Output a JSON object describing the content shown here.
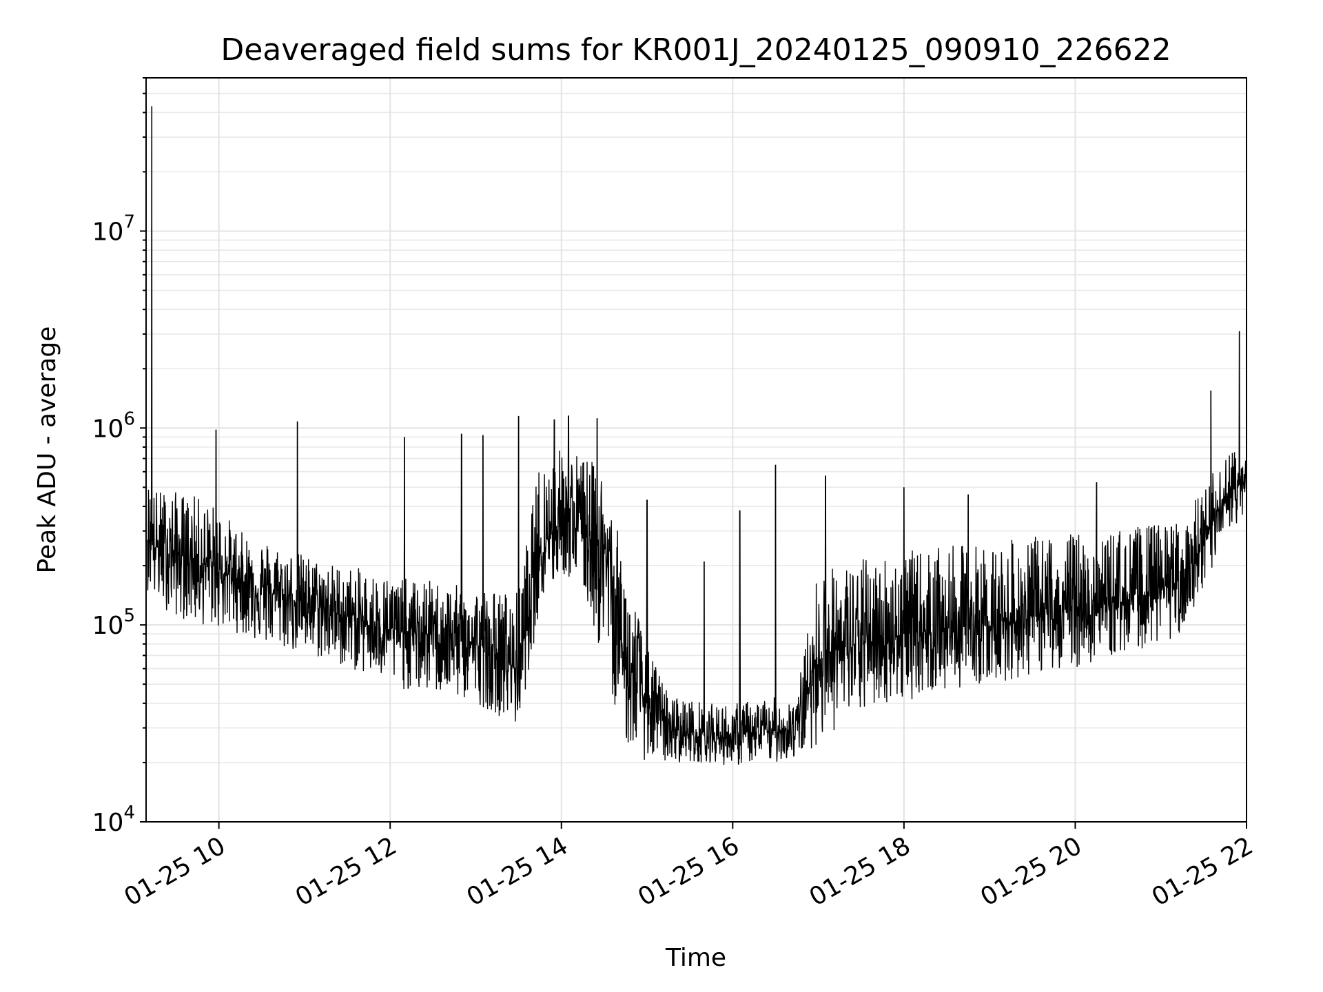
{
  "chart_data": {
    "type": "line",
    "title": "Deaveraged field sums for KR001J_20240125_090910_226622",
    "xlabel": "Time",
    "ylabel": "Peak ADU - average",
    "yscale": "log",
    "ylim": [
      10000,
      60000000
    ],
    "xlim": [
      "2024-01-25 09:09",
      "2024-01-25 22:00"
    ],
    "grid": true,
    "x_ticks": [
      {
        "value": "2024-01-25 10:00",
        "label": "01-25 10"
      },
      {
        "value": "2024-01-25 12:00",
        "label": "01-25 12"
      },
      {
        "value": "2024-01-25 14:00",
        "label": "01-25 14"
      },
      {
        "value": "2024-01-25 16:00",
        "label": "01-25 16"
      },
      {
        "value": "2024-01-25 18:00",
        "label": "01-25 18"
      },
      {
        "value": "2024-01-25 20:00",
        "label": "01-25 20"
      },
      {
        "value": "2024-01-25 22:00",
        "label": "01-25 22"
      }
    ],
    "y_ticks": [
      {
        "value": 10000,
        "base": "10",
        "exp": "4"
      },
      {
        "value": 100000,
        "base": "10",
        "exp": "5"
      },
      {
        "value": 1000000,
        "base": "10",
        "exp": "6"
      },
      {
        "value": 10000000,
        "base": "10",
        "exp": "7"
      }
    ],
    "series": [
      {
        "color": "#000000",
        "x": [
          "2024-01-25 09:10",
          "2024-01-25 09:15",
          "2024-01-25 09:30",
          "2024-01-25 09:45",
          "2024-01-25 10:00",
          "2024-01-25 10:15",
          "2024-01-25 10:30",
          "2024-01-25 10:45",
          "2024-01-25 11:00",
          "2024-01-25 11:15",
          "2024-01-25 11:30",
          "2024-01-25 11:45",
          "2024-01-25 12:00",
          "2024-01-25 12:15",
          "2024-01-25 12:30",
          "2024-01-25 12:45",
          "2024-01-25 13:00",
          "2024-01-25 13:15",
          "2024-01-25 13:30",
          "2024-01-25 13:45",
          "2024-01-25 14:00",
          "2024-01-25 14:15",
          "2024-01-25 14:30",
          "2024-01-25 14:45",
          "2024-01-25 15:00",
          "2024-01-25 15:15",
          "2024-01-25 15:30",
          "2024-01-25 15:45",
          "2024-01-25 16:00",
          "2024-01-25 16:15",
          "2024-01-25 16:30",
          "2024-01-25 16:45",
          "2024-01-25 17:00",
          "2024-01-25 17:15",
          "2024-01-25 17:30",
          "2024-01-25 17:45",
          "2024-01-25 18:00",
          "2024-01-25 18:15",
          "2024-01-25 18:30",
          "2024-01-25 18:45",
          "2024-01-25 19:00",
          "2024-01-25 19:15",
          "2024-01-25 19:30",
          "2024-01-25 19:45",
          "2024-01-25 20:00",
          "2024-01-25 20:15",
          "2024-01-25 20:30",
          "2024-01-25 20:45",
          "2024-01-25 21:00",
          "2024-01-25 21:15",
          "2024-01-25 21:30",
          "2024-01-25 21:45",
          "2024-01-25 22:00"
        ],
        "y": [
          300000,
          250000,
          230000,
          210000,
          190000,
          170000,
          150000,
          140000,
          130000,
          120000,
          110000,
          100000,
          95000,
          90000,
          90000,
          85000,
          80000,
          70000,
          60000,
          250000,
          350000,
          300000,
          250000,
          60000,
          40000,
          30000,
          28000,
          27000,
          27000,
          28000,
          29000,
          30000,
          70000,
          75000,
          80000,
          85000,
          90000,
          92000,
          95000,
          100000,
          100000,
          105000,
          110000,
          115000,
          120000,
          125000,
          130000,
          140000,
          150000,
          170000,
          250000,
          450000,
          550000
        ],
        "lower": [
          150000,
          130000,
          110000,
          100000,
          95000,
          90000,
          80000,
          75000,
          70000,
          65000,
          60000,
          55000,
          50000,
          45000,
          45000,
          42000,
          40000,
          35000,
          30000,
          120000,
          180000,
          150000,
          60000,
          25000,
          20000,
          20000,
          20000,
          20000,
          19000,
          20000,
          20000,
          21000,
          25000,
          30000,
          35000,
          40000,
          40000,
          45000,
          45000,
          50000,
          50000,
          52000,
          55000,
          60000,
          60000,
          65000,
          70000,
          75000,
          80000,
          90000,
          120000,
          300000,
          350000
        ],
        "upper": [
          550000,
          500000,
          480000,
          450000,
          400000,
          300000,
          280000,
          250000,
          230000,
          210000,
          200000,
          190000,
          180000,
          170000,
          170000,
          160000,
          160000,
          150000,
          150000,
          700000,
          800000,
          750000,
          600000,
          200000,
          80000,
          45000,
          42000,
          40000,
          40000,
          42000,
          43000,
          45000,
          200000,
          200000,
          220000,
          230000,
          240000,
          240000,
          250000,
          260000,
          260000,
          270000,
          280000,
          290000,
          300000,
          300000,
          310000,
          320000,
          330000,
          350000,
          500000,
          750000,
          850000
        ],
        "spikes": [
          {
            "x": "2024-01-25 09:13",
            "y": 43000000
          },
          {
            "x": "2024-01-25 09:58",
            "y": 980000
          },
          {
            "x": "2024-01-25 10:55",
            "y": 1080000
          },
          {
            "x": "2024-01-25 12:10",
            "y": 900000
          },
          {
            "x": "2024-01-25 12:50",
            "y": 930000
          },
          {
            "x": "2024-01-25 13:05",
            "y": 920000
          },
          {
            "x": "2024-01-25 13:30",
            "y": 1150000
          },
          {
            "x": "2024-01-25 13:55",
            "y": 1100000
          },
          {
            "x": "2024-01-25 14:05",
            "y": 1150000
          },
          {
            "x": "2024-01-25 14:25",
            "y": 1120000
          },
          {
            "x": "2024-01-25 15:00",
            "y": 430000
          },
          {
            "x": "2024-01-25 15:40",
            "y": 210000
          },
          {
            "x": "2024-01-25 16:05",
            "y": 380000
          },
          {
            "x": "2024-01-25 16:30",
            "y": 650000
          },
          {
            "x": "2024-01-25 17:05",
            "y": 570000
          },
          {
            "x": "2024-01-25 18:00",
            "y": 500000
          },
          {
            "x": "2024-01-25 18:45",
            "y": 460000
          },
          {
            "x": "2024-01-25 20:15",
            "y": 530000
          },
          {
            "x": "2024-01-25 21:35",
            "y": 1550000
          },
          {
            "x": "2024-01-25 21:55",
            "y": 3100000
          }
        ]
      }
    ]
  }
}
